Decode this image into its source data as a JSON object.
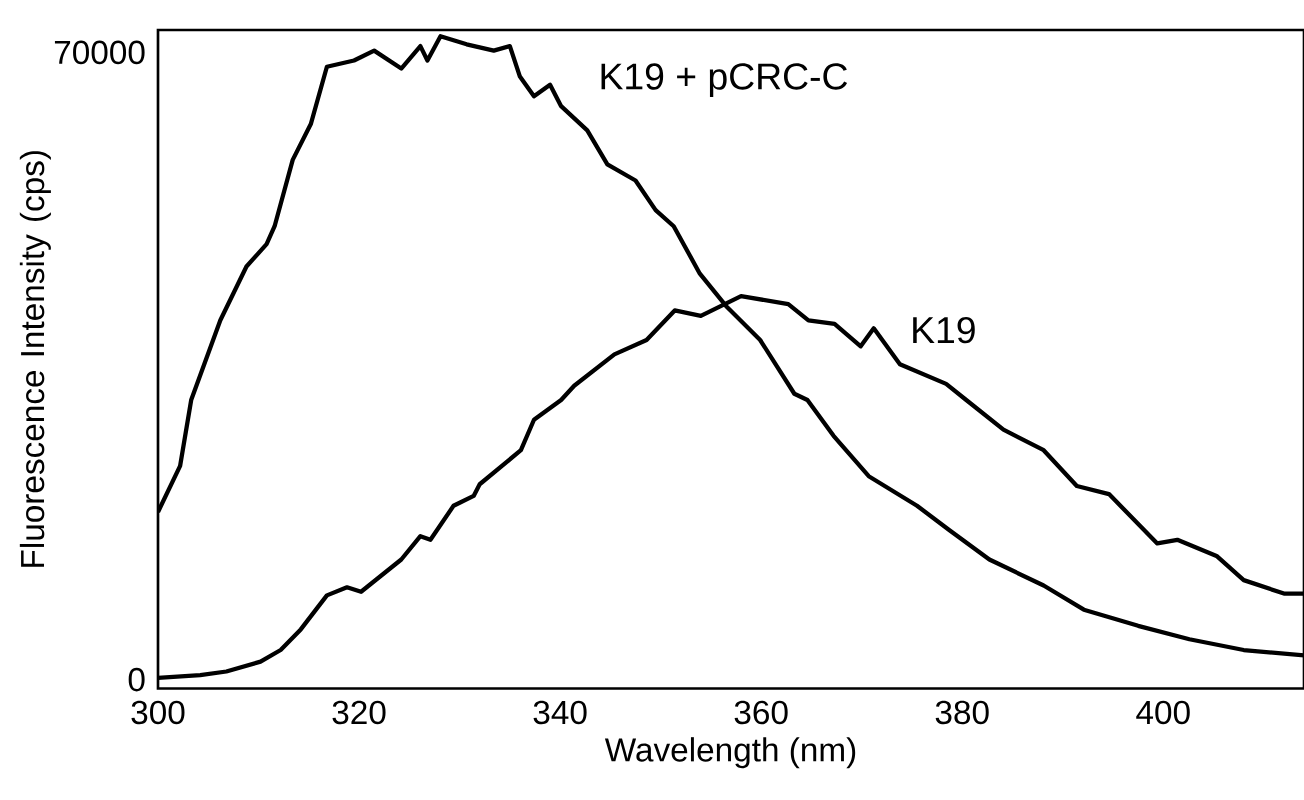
{
  "chart_data": {
    "type": "line",
    "xlabel": "Wavelength (nm)",
    "ylabel": "Fluorescence Intensity (cps)",
    "xlim": [
      300,
      414
    ],
    "ylim": [
      -1000,
      72500
    ],
    "xticks": [
      300,
      320,
      340,
      360,
      380,
      400
    ],
    "yticks": [
      0,
      70000
    ],
    "grid": false,
    "legend": false,
    "marker": "none",
    "line_style": "solid",
    "series": [
      {
        "name": "K19 + pCRC-C",
        "color": "#000000",
        "x": [
          300,
          302.2,
          303.3,
          306.2,
          308.8,
          310.8,
          311.6,
          313.4,
          315.2,
          316.8,
          319.5,
          321.5,
          324.2,
          326.1,
          326.8,
          328.1,
          330.7,
          333.4,
          335,
          336,
          337.4,
          339,
          340.1,
          342.7,
          344.7,
          347.5,
          349.5,
          351.3,
          353.9,
          356.5,
          359.9,
          363.3,
          364.6,
          367.2,
          370.7,
          375.5,
          378.7,
          382.7,
          388.1,
          392.1,
          397.5,
          402.6,
          408,
          414
        ],
        "values": [
          18700,
          23850,
          31200,
          40100,
          46100,
          48600,
          50600,
          58000,
          62000,
          68400,
          69100,
          70200,
          68200,
          70700,
          69100,
          71800,
          70900,
          70200,
          70700,
          67300,
          65100,
          66400,
          64000,
          61300,
          57500,
          55700,
          52400,
          50600,
          45300,
          41700,
          37900,
          31900,
          31200,
          27200,
          22700,
          19400,
          16700,
          13400,
          10500,
          7800,
          6000,
          4500,
          3300,
          2700
        ]
      },
      {
        "name": "K19",
        "color": "#000000",
        "x": [
          300,
          304.2,
          306.8,
          310.2,
          312.2,
          314.2,
          316.8,
          318.8,
          320.2,
          324.2,
          326.1,
          327.1,
          329.4,
          331.4,
          332,
          336.1,
          337.4,
          340.1,
          341.4,
          345.4,
          348.6,
          351.4,
          354,
          358,
          362.7,
          364.7,
          367.3,
          369.9,
          371.2,
          373.8,
          378.4,
          380.4,
          384.1,
          388.1,
          391.4,
          394.6,
          399.4,
          401.4,
          405.3,
          408,
          412,
          414
        ],
        "values": [
          200,
          500,
          900,
          2000,
          3300,
          5600,
          9400,
          10300,
          9800,
          13400,
          16000,
          15600,
          19400,
          20500,
          21800,
          25600,
          29000,
          31200,
          32800,
          36300,
          37900,
          41200,
          40600,
          42800,
          41900,
          40100,
          39700,
          37200,
          39200,
          35200,
          33000,
          31200,
          27900,
          25600,
          21600,
          20700,
          15200,
          15600,
          13800,
          11100,
          9600,
          9600
        ]
      }
    ]
  }
}
